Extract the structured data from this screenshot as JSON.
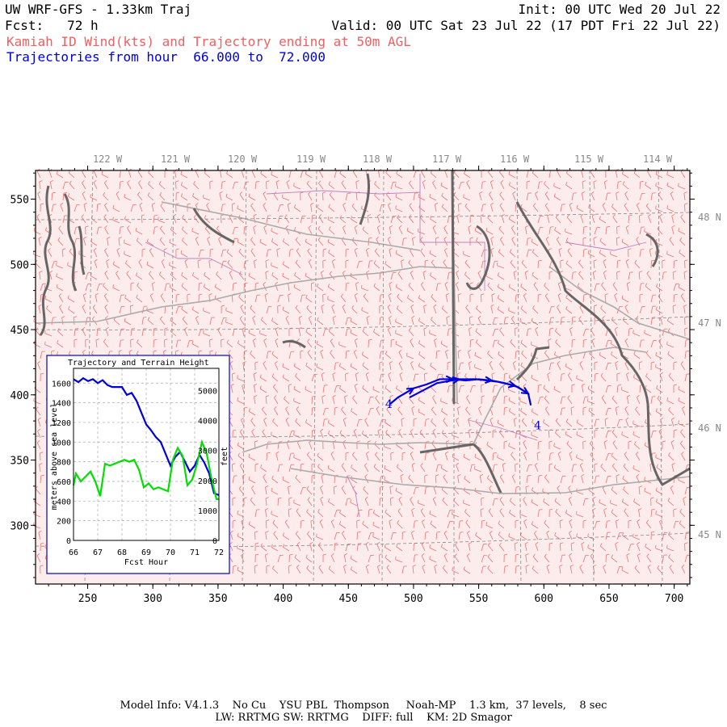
{
  "header": {
    "model_title": "UW WRF-GFS - 1.33km Traj",
    "init": "Init: 00 UTC Wed 20 Jul 22",
    "fcst": "Fcst:   72 h",
    "valid": "Valid: 00 UTC Sat 23 Jul 22 (17 PDT Fri 22 Jul 22)",
    "subtitle": "Kamiah ID Wind(kts) and Trajectory ending at 50m AGL",
    "traj_range": "Trajectories from hour  66.000 to  72.000"
  },
  "map": {
    "longitude_labels": [
      "122 W",
      "121 W",
      "120 W",
      "119 W",
      "118 W",
      "117 W",
      "116 W",
      "115 W",
      "114 W"
    ],
    "latitude_labels": [
      "48 N",
      "47 N",
      "46 N",
      "45 N"
    ],
    "x_ticks": [
      "250",
      "300",
      "350",
      "400",
      "450",
      "500",
      "550",
      "600",
      "650",
      "700"
    ],
    "y_ticks": [
      "550",
      "500",
      "450",
      "400",
      "350",
      "300"
    ],
    "x_range": [
      210,
      712
    ],
    "y_range": [
      255,
      572
    ],
    "trajectory_marker": "4",
    "trajectories": [
      {
        "points": [
          [
            482,
            393
          ],
          [
            488,
            398
          ],
          [
            500,
            405
          ],
          [
            510,
            408
          ],
          [
            520,
            412
          ],
          [
            530,
            412
          ],
          [
            540,
            411
          ],
          [
            550,
            412
          ],
          [
            560,
            411
          ],
          [
            570,
            409
          ],
          [
            580,
            406
          ],
          [
            588,
            401
          ]
        ]
      },
      {
        "points": [
          [
            497,
            398
          ],
          [
            518,
            409
          ],
          [
            535,
            412
          ],
          [
            548,
            412
          ],
          [
            565,
            410
          ],
          [
            578,
            407
          ],
          [
            588,
            401
          ],
          [
            590,
            392
          ]
        ]
      }
    ],
    "colors": {
      "wind_barbs": "#f07070",
      "borders": "#aaaaaa",
      "coast": "#666666",
      "county": "#c080c0",
      "trajectory": "#0000dd"
    }
  },
  "inset": {
    "title": "Trajectory and Terrain Height",
    "ylabel_left": "meters above sea level",
    "ylabel_right": "feet",
    "xlabel": "Fcst Hour",
    "x_ticks": [
      "66",
      "67",
      "68",
      "69",
      "70",
      "71",
      "72"
    ],
    "y_ticks_left": [
      "0",
      "200",
      "400",
      "600",
      "800",
      "1000",
      "1200",
      "1400",
      "1600"
    ],
    "y_ticks_right": [
      "0",
      "1000",
      "2000",
      "3000",
      "4000",
      "5000"
    ]
  },
  "chart_data": {
    "type": "line",
    "title": "Trajectory and Terrain Height",
    "xlabel": "Fcst Hour",
    "ylabel": "meters above sea level",
    "xlim": [
      66,
      72
    ],
    "ylim": [
      0,
      1750
    ],
    "series": [
      {
        "color": "#0000dd",
        "x": [
          66.0,
          66.2,
          66.4,
          66.6,
          66.8,
          67.0,
          67.2,
          67.4,
          67.6,
          67.8,
          68.0,
          68.2,
          68.4,
          68.6,
          68.8,
          69.0,
          69.2,
          69.4,
          69.6,
          69.8,
          70.0,
          70.2,
          70.4,
          70.6,
          70.8,
          71.0,
          71.2,
          71.4,
          71.6,
          71.8,
          72.0
        ],
        "values": [
          1640,
          1610,
          1650,
          1620,
          1640,
          1600,
          1630,
          1580,
          1560,
          1560,
          1560,
          1480,
          1500,
          1420,
          1300,
          1180,
          1120,
          1050,
          1000,
          880,
          760,
          850,
          900,
          800,
          700,
          760,
          870,
          790,
          680,
          480,
          460
        ]
      },
      {
        "color": "#00e000",
        "x": [
          66.0,
          66.1,
          66.3,
          66.5,
          66.7,
          66.9,
          67.1,
          67.3,
          67.5,
          67.7,
          67.9,
          68.1,
          68.3,
          68.5,
          68.7,
          68.9,
          69.1,
          69.3,
          69.5,
          69.7,
          69.9,
          70.1,
          70.3,
          70.5,
          70.7,
          70.9,
          71.1,
          71.3,
          71.5,
          71.7,
          71.9,
          72.0
        ],
        "values": [
          560,
          680,
          600,
          650,
          700,
          600,
          450,
          780,
          760,
          780,
          800,
          820,
          800,
          820,
          720,
          540,
          580,
          520,
          540,
          520,
          500,
          820,
          940,
          860,
          560,
          620,
          780,
          1000,
          880,
          620,
          420,
          420
        ]
      }
    ]
  },
  "footer": {
    "line1": "Model Info: V4.1.3    No Cu    YSU PBL  Thompson     Noah-MP    1.3 km,  37 levels,    8 sec",
    "line2": "LW: RRTMG SW: RRTMG    DIFF: full    KM: 2D Smagor"
  }
}
